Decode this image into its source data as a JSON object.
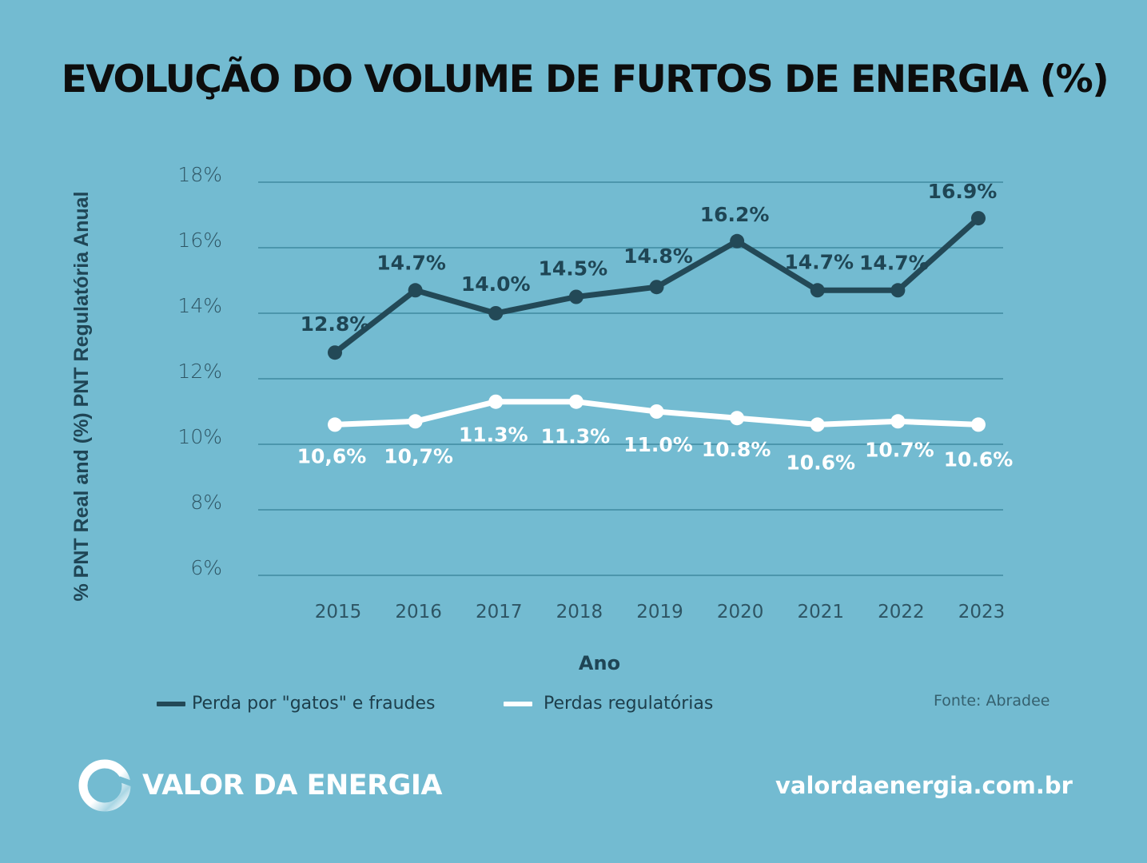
{
  "title": "EVOLUÇÃO DO VOLUME DE FURTOS DE ENERGIA (%)",
  "colors": {
    "background": "#73bbd1",
    "series_dark": "#234957",
    "series_white": "#ffffff"
  },
  "chart_data": {
    "type": "line",
    "title": "EVOLUÇÃO DO VOLUME DE FURTOS DE ENERGIA (%)",
    "xlabel": "Ano",
    "ylabel": "% PNT Real and (%) PNT Regulatória Anual",
    "x": [
      "2015",
      "2016",
      "2017",
      "2018",
      "2019",
      "2020",
      "2021",
      "2022",
      "2023"
    ],
    "ylim": [
      6,
      18
    ],
    "yticks": [
      6,
      8,
      10,
      12,
      14,
      16,
      18
    ],
    "ytick_labels": [
      "6%",
      "8%",
      "10%",
      "12%",
      "14%",
      "16%",
      "18%"
    ],
    "grid": true,
    "legend_position": "bottom-left",
    "series": [
      {
        "name": "Perda por \"gatos\" e fraudes",
        "values": [
          12.8,
          14.7,
          14.0,
          14.5,
          14.8,
          16.2,
          14.7,
          14.7,
          16.9
        ],
        "labels": [
          "12.8%",
          "14.7%",
          "14.0%",
          "14.5%",
          "14.8%",
          "16.2%",
          "14.7%",
          "14.7%",
          "16.9%"
        ]
      },
      {
        "name": "Perdas regulatórias",
        "values": [
          10.6,
          10.7,
          11.3,
          11.3,
          11.0,
          10.8,
          10.6,
          10.7,
          10.6
        ],
        "labels": [
          "10,6%",
          "10,7%",
          "11.3%",
          "11.3%",
          "11.0%",
          "10.8%",
          "10.6%",
          "10.7%",
          "10.6%"
        ]
      }
    ]
  },
  "source": "Fonte: Abradee",
  "brand": {
    "name": "VALOR DA ENERGIA",
    "icon": "ring-logo-icon",
    "website": "valordaenergia.com.br"
  }
}
